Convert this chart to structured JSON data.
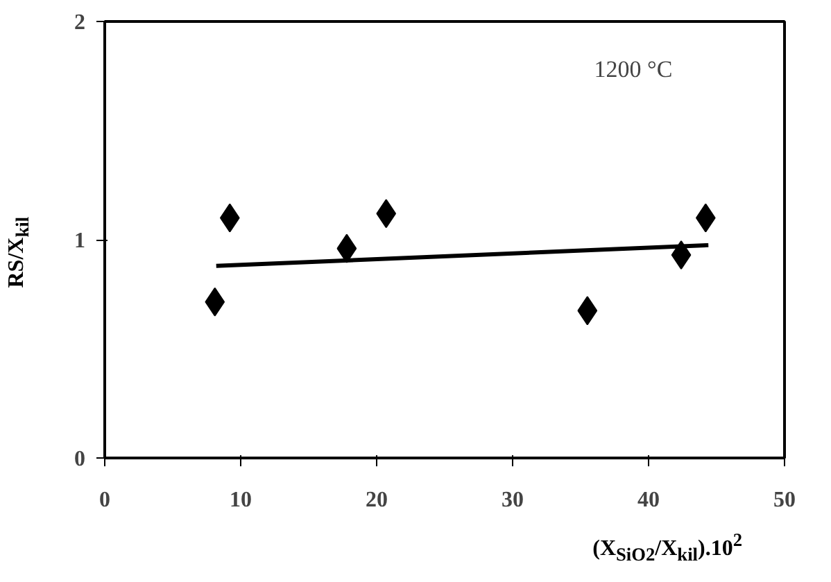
{
  "chart_data": {
    "type": "scatter",
    "xlabel": "(X$_{SiO2}$/X$_{kil}$).10$^{2}$",
    "ylabel": "RS/X$_{kil}$",
    "annotations": [
      "1200 °C"
    ],
    "xlim": [
      0,
      50
    ],
    "xticks": [
      0,
      10,
      20,
      30,
      40,
      50
    ],
    "ylim": [
      0,
      2
    ],
    "yticks": [
      0,
      1,
      2
    ],
    "series": [
      {
        "color": "#000000",
        "marker": "diamond",
        "x": [
          8.1,
          9.2,
          17.8,
          20.7,
          35.5,
          42.4,
          44.2
        ],
        "values": [
          0.715,
          1.1,
          0.96,
          1.12,
          0.675,
          0.93,
          1.1
        ]
      },
      {
        "type": "line",
        "color": "#000000",
        "x": [
          8.2,
          44.4
        ],
        "values": [
          0.88,
          0.975
        ],
        "line_style": "solid"
      }
    ]
  }
}
